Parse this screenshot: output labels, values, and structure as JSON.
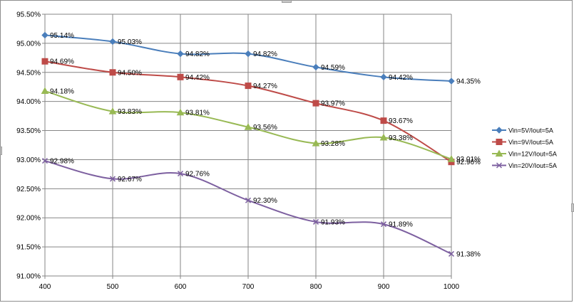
{
  "chart_data": {
    "type": "line",
    "title": "",
    "xlabel": "",
    "ylabel": "",
    "x": [
      400,
      500,
      600,
      700,
      800,
      900,
      1000
    ],
    "x_tick_labels": [
      "400",
      "500",
      "600",
      "700",
      "800",
      "900",
      "1000"
    ],
    "ylim": [
      91.0,
      95.5
    ],
    "y_ticks": [
      91.0,
      91.5,
      92.0,
      92.5,
      93.0,
      93.5,
      94.0,
      94.5,
      95.0,
      95.5
    ],
    "y_tick_labels": [
      "91.00%",
      "91.50%",
      "92.00%",
      "92.50%",
      "93.00%",
      "93.50%",
      "94.00%",
      "94.50%",
      "95.00%",
      "95.50%"
    ],
    "grid": true,
    "smoothed": true,
    "legend_position": "right",
    "series": [
      {
        "name": "Vin=5V/Iout=5A",
        "color": "#4a7ebb",
        "marker": "diamond",
        "values": [
          95.14,
          95.03,
          94.82,
          94.82,
          94.59,
          94.42,
          94.35
        ],
        "labels": [
          "95.14%",
          "95.03%",
          "94.82%",
          "94.82%",
          "94.59%",
          "94.42%",
          "94.35%"
        ]
      },
      {
        "name": "Vin=9V/Iout=5A",
        "color": "#be4b48",
        "marker": "square",
        "values": [
          94.69,
          94.5,
          94.42,
          94.27,
          93.97,
          93.67,
          92.96
        ],
        "labels": [
          "94.69%",
          "94.50%",
          "94.42%",
          "94.27%",
          "93.97%",
          "93.67%",
          "92.96%"
        ]
      },
      {
        "name": "Vin=12V/Iout=5A",
        "color": "#98b954",
        "marker": "triangle",
        "values": [
          94.18,
          93.83,
          93.81,
          93.56,
          93.28,
          93.38,
          93.01
        ],
        "labels": [
          "94.18%",
          "93.83%",
          "93.81%",
          "93.56%",
          "93.28%",
          "93.38%",
          "93.01%"
        ]
      },
      {
        "name": "Vin=20V/Iout=5A",
        "color": "#7d60a0",
        "marker": "x",
        "values": [
          92.98,
          92.67,
          92.76,
          92.3,
          91.93,
          91.89,
          91.38
        ],
        "labels": [
          "92.98%",
          "92.67%",
          "92.76%",
          "92.30%",
          "91.93%",
          "91.89%",
          "91.38%"
        ]
      }
    ]
  }
}
